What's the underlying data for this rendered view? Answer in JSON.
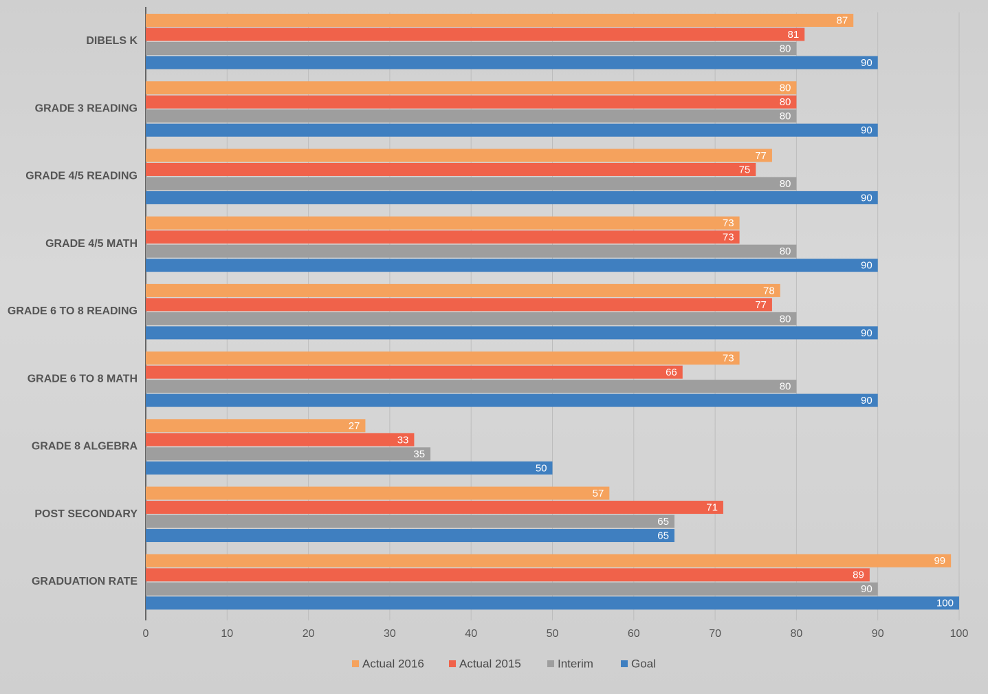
{
  "chart_data": {
    "type": "bar",
    "orientation": "horizontal",
    "categories": [
      "DIBELS K",
      "GRADE 3 READING",
      "GRADE 4/5 READING",
      "GRADE 4/5 MATH",
      "GRADE 6 TO 8 READING",
      "GRADE 6 TO 8 MATH",
      "GRADE 8 ALGEBRA",
      "POST SECONDARY",
      "GRADUATION RATE"
    ],
    "series": [
      {
        "name": "Actual 2016",
        "color": "#f5a25d",
        "values": [
          87,
          80,
          77,
          73,
          78,
          73,
          27,
          57,
          99
        ]
      },
      {
        "name": "Actual 2015",
        "color": "#f0624a",
        "values": [
          81,
          80,
          75,
          73,
          77,
          66,
          33,
          71,
          89
        ]
      },
      {
        "name": "Interim",
        "color": "#9e9e9e",
        "values": [
          80,
          80,
          80,
          80,
          80,
          80,
          35,
          65,
          90
        ]
      },
      {
        "name": "Goal",
        "color": "#3f7fc0",
        "values": [
          90,
          90,
          90,
          90,
          90,
          90,
          50,
          65,
          100
        ]
      }
    ],
    "x_ticks": [
      "0",
      "10",
      "20",
      "30",
      "40",
      "50",
      "60",
      "70",
      "80",
      "90",
      "100"
    ],
    "xlim": [
      0,
      100
    ],
    "grid": true,
    "legend_position": "bottom",
    "data_labels": true
  }
}
